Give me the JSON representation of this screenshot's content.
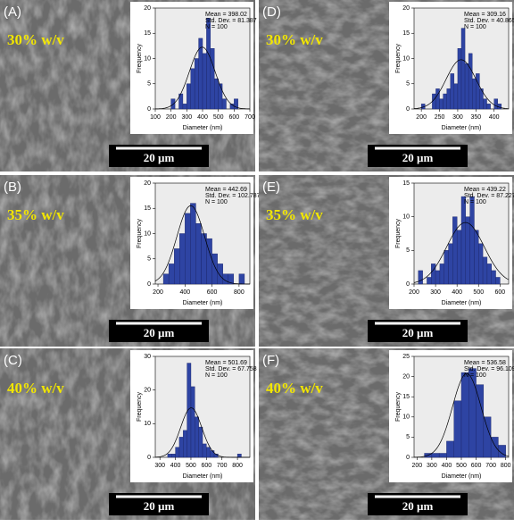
{
  "chart_data": [
    {
      "type": "histogram",
      "panel_label": "(A)",
      "annotation": "30% w/v",
      "scale_bar": "20 µm",
      "x_label": "Diameter (nm)",
      "y_label": "Frequency",
      "color": "#2e44a3",
      "bins": [
        200,
        225,
        250,
        275,
        300,
        325,
        350,
        375,
        400,
        425,
        450,
        475,
        500,
        525,
        550,
        575,
        600,
        625
      ],
      "counts": [
        2,
        0,
        3,
        1,
        5,
        8,
        10,
        14,
        11,
        18,
        12,
        6,
        5,
        2,
        0,
        1,
        2
      ],
      "xlim": [
        100,
        700
      ],
      "xticks": [
        100,
        200,
        300,
        400,
        500,
        600,
        700
      ],
      "ylim": [
        0,
        20
      ],
      "yticks": [
        0,
        5,
        10,
        15,
        20
      ],
      "stats": [
        {
          "value": 398.02,
          "label": "Mean = 398.02"
        },
        {
          "value": 81.387,
          "label": "Std. Dev. = 81.387"
        },
        {
          "value": 100,
          "label": "N = 100"
        }
      ]
    },
    {
      "type": "histogram",
      "panel_label": "(D)",
      "annotation": "30% w/v",
      "scale_bar": "20 µm",
      "x_label": "Diameter (nm)",
      "y_label": "Frequency",
      "color": "#2e44a3",
      "bins": [
        200,
        210,
        220,
        230,
        240,
        250,
        260,
        270,
        280,
        290,
        300,
        310,
        320,
        330,
        340,
        350,
        360,
        370,
        380,
        390,
        400,
        410,
        420
      ],
      "counts": [
        1,
        0,
        0,
        3,
        4,
        2,
        3,
        4,
        7,
        5,
        12,
        16,
        9,
        11,
        6,
        7,
        4,
        2,
        1,
        0,
        2,
        1
      ],
      "xlim": [
        180,
        440
      ],
      "xticks": [
        200,
        250,
        300,
        350,
        400
      ],
      "ylim": [
        0,
        20
      ],
      "yticks": [
        0,
        5,
        10,
        15,
        20
      ],
      "stats": [
        {
          "value": 309.16,
          "label": "Mean = 309.16"
        },
        {
          "value": 40.865,
          "label": "Std. Dev. = 40.865"
        },
        {
          "value": 100,
          "label": "N = 100"
        }
      ]
    },
    {
      "type": "histogram",
      "panel_label": "(B)",
      "annotation": "35% w/v",
      "scale_bar": "20 µm",
      "x_label": "Diameter (nm)",
      "y_label": "Frequency",
      "color": "#2e44a3",
      "bins": [
        240,
        280,
        320,
        360,
        400,
        440,
        480,
        520,
        560,
        600,
        640,
        680,
        720,
        760,
        800,
        840
      ],
      "counts": [
        2,
        4,
        7,
        10,
        14,
        16,
        12,
        10,
        9,
        6,
        4,
        2,
        2,
        0,
        2
      ],
      "xlim": [
        180,
        880
      ],
      "xticks": [
        200,
        400,
        600,
        800
      ],
      "ylim": [
        0,
        20
      ],
      "yticks": [
        0,
        5,
        10,
        15,
        20
      ],
      "stats": [
        {
          "value": 442.69,
          "label": "Mean = 442.69"
        },
        {
          "value": 102.787,
          "label": "Std. Dev. = 102.787"
        },
        {
          "value": 100,
          "label": "N = 100"
        }
      ]
    },
    {
      "type": "histogram",
      "panel_label": "(E)",
      "annotation": "35% w/v",
      "scale_bar": "20 µm",
      "x_label": "Diameter (nm)",
      "y_label": "Frequency",
      "color": "#2e44a3",
      "bins": [
        220,
        240,
        260,
        280,
        300,
        320,
        340,
        360,
        380,
        400,
        420,
        440,
        460,
        480,
        500,
        520,
        540,
        560,
        580,
        600,
        620
      ],
      "counts": [
        2,
        0,
        1,
        3,
        2,
        3,
        5,
        6,
        10,
        8,
        13,
        10,
        13,
        8,
        6,
        4,
        3,
        2,
        1,
        0
      ],
      "xlim": [
        200,
        640
      ],
      "xticks": [
        200,
        300,
        400,
        500,
        600
      ],
      "ylim": [
        0,
        15
      ],
      "yticks": [
        0,
        5,
        10,
        15
      ],
      "stats": [
        {
          "value": 439.22,
          "label": "Mean = 439.22"
        },
        {
          "value": 87.227,
          "label": "Std. Dev. = 87.227"
        },
        {
          "value": 100,
          "label": "N = 100"
        }
      ]
    },
    {
      "type": "histogram",
      "panel_label": "(C)",
      "annotation": "40% w/v",
      "scale_bar": "20 µm",
      "x_label": "Diameter (nm)",
      "y_label": "Frequency",
      "color": "#2e44a3",
      "bins": [
        350,
        375,
        400,
        425,
        450,
        475,
        500,
        525,
        550,
        575,
        600,
        625,
        650,
        675,
        700,
        725,
        750,
        775,
        800,
        825
      ],
      "counts": [
        1,
        1,
        3,
        6,
        8,
        28,
        21,
        12,
        9,
        4,
        3,
        2,
        1,
        0,
        0,
        0,
        0,
        0,
        1
      ],
      "xlim": [
        270,
        880
      ],
      "xticks": [
        300,
        400,
        500,
        600,
        700,
        800
      ],
      "ylim": [
        0,
        30
      ],
      "yticks": [
        0,
        10,
        20,
        30
      ],
      "stats": [
        {
          "value": 501.69,
          "label": "Mean = 501.69"
        },
        {
          "value": 67.758,
          "label": "Std. Dev. = 67.758"
        },
        {
          "value": 100,
          "label": "N = 100"
        }
      ]
    },
    {
      "type": "histogram",
      "panel_label": "(F)",
      "annotation": "40% w/v",
      "scale_bar": "20 µm",
      "x_label": "Diameter (nm)",
      "y_label": "Frequency",
      "color": "#2e44a3",
      "bins": [
        250,
        300,
        350,
        400,
        450,
        500,
        550,
        600,
        650,
        700,
        750,
        800
      ],
      "counts": [
        1,
        1,
        1,
        4,
        14,
        21,
        22,
        18,
        10,
        5,
        3
      ],
      "xlim": [
        180,
        820
      ],
      "xticks": [
        200,
        300,
        400,
        500,
        600,
        700,
        800
      ],
      "ylim": [
        0,
        25
      ],
      "yticks": [
        0,
        5,
        10,
        15,
        20,
        25
      ],
      "stats": [
        {
          "value": 536.58,
          "label": "Mean = 536.58"
        },
        {
          "value": 96.109,
          "label": "Std. Dev. = 96.109"
        },
        {
          "value": 100,
          "label": "N = 100"
        }
      ]
    }
  ]
}
